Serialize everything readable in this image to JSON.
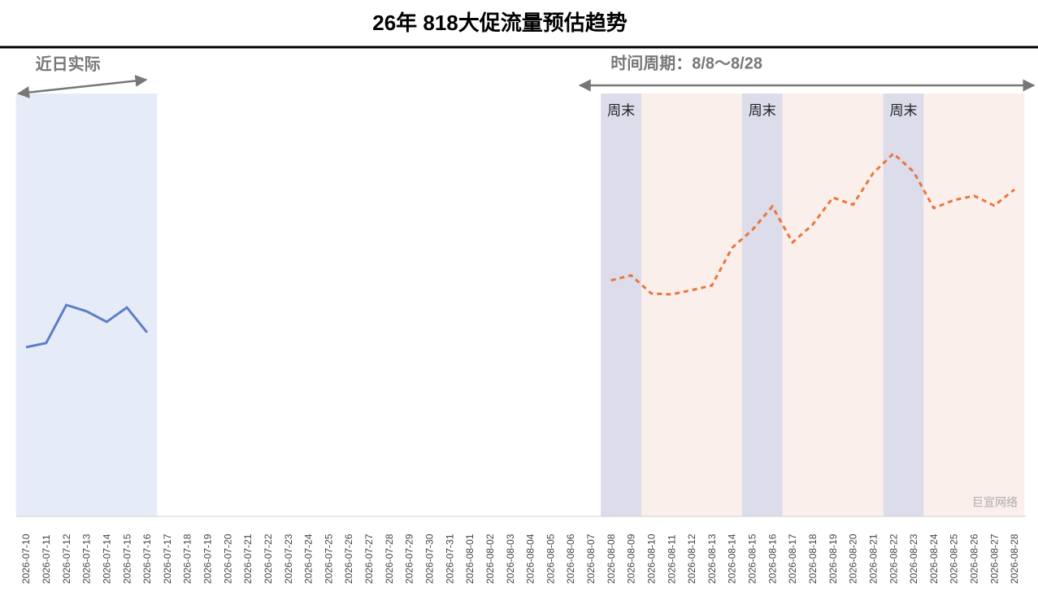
{
  "chart_data": {
    "type": "line",
    "title": "26年 818大促流量预估趋势",
    "categories": [
      "2026-07-10",
      "2026-07-11",
      "2026-07-12",
      "2026-07-13",
      "2026-07-14",
      "2026-07-15",
      "2026-07-16",
      "2026-07-17",
      "2026-07-18",
      "2026-07-19",
      "2026-07-20",
      "2026-07-21",
      "2026-07-22",
      "2026-07-23",
      "2026-07-24",
      "2026-07-25",
      "2026-07-26",
      "2026-07-27",
      "2026-07-28",
      "2026-07-29",
      "2026-07-30",
      "2026-07-31",
      "2026-08-01",
      "2026-08-02",
      "2026-08-03",
      "2026-08-04",
      "2026-08-05",
      "2026-08-06",
      "2026-08-07",
      "2026-08-08",
      "2026-08-09",
      "2026-08-10",
      "2026-08-11",
      "2026-08-12",
      "2026-08-13",
      "2026-08-14",
      "2026-08-15",
      "2026-08-16",
      "2026-08-17",
      "2026-08-18",
      "2026-08-19",
      "2026-08-20",
      "2026-08-21",
      "2026-08-22",
      "2026-08-23",
      "2026-08-24",
      "2026-08-25",
      "2026-08-26",
      "2026-08-27",
      "2026-08-28"
    ],
    "series": [
      {
        "color": "#5b7fc7",
        "dash": "solid",
        "values": [
          40,
          41,
          50,
          48.5,
          46,
          49.4,
          43.5,
          null,
          null,
          null,
          null,
          null,
          null,
          null,
          null,
          null,
          null,
          null,
          null,
          null,
          null,
          null,
          null,
          null,
          null,
          null,
          null,
          null,
          null,
          null,
          null,
          null,
          null,
          null,
          null,
          null,
          null,
          null,
          null,
          null,
          null,
          null,
          null,
          null,
          null,
          null,
          null,
          null,
          null,
          null
        ]
      },
      {
        "color": "#a0a0a0",
        "dash": "long",
        "values": [
          null,
          null,
          null,
          null,
          null,
          null,
          43.5,
          null,
          null,
          null,
          null,
          null,
          null,
          null,
          null,
          null,
          null,
          null,
          null,
          null,
          null,
          null,
          null,
          null,
          null,
          null,
          null,
          null,
          null,
          55.8,
          null,
          null,
          null,
          null,
          null,
          null,
          null,
          null,
          null,
          null,
          null,
          null,
          null,
          null,
          null,
          null,
          null,
          null,
          null,
          null
        ]
      },
      {
        "color": "#e8773a",
        "dash": "short",
        "values": [
          null,
          null,
          null,
          null,
          null,
          null,
          null,
          null,
          null,
          null,
          null,
          null,
          null,
          null,
          null,
          null,
          null,
          null,
          null,
          null,
          null,
          null,
          null,
          null,
          null,
          null,
          null,
          null,
          null,
          55.8,
          57,
          52.7,
          52.5,
          53.5,
          54.6,
          63.5,
          67.7,
          73.3,
          64.8,
          69,
          75.4,
          73.7,
          81.2,
          85.8,
          81.5,
          72.9,
          74.8,
          75.8,
          73.5,
          77.3
        ]
      }
    ],
    "ylim": [
      0,
      100
    ],
    "regions": [
      {
        "label": "近日实际",
        "from": "2026-07-10",
        "to": "2026-07-16",
        "color": "#e6ecf7"
      },
      {
        "label": "时间周期：8/8～8/28",
        "from": "2026-08-08",
        "to": "2026-08-28",
        "color": "#fbefec"
      }
    ],
    "weekends": [
      {
        "label": "周末",
        "from": "2026-08-08",
        "to": "2026-08-09"
      },
      {
        "label": "周末",
        "from": "2026-08-15",
        "to": "2026-08-16"
      },
      {
        "label": "周末",
        "from": "2026-08-22",
        "to": "2026-08-23"
      }
    ],
    "watermark": "巨宣网络"
  }
}
